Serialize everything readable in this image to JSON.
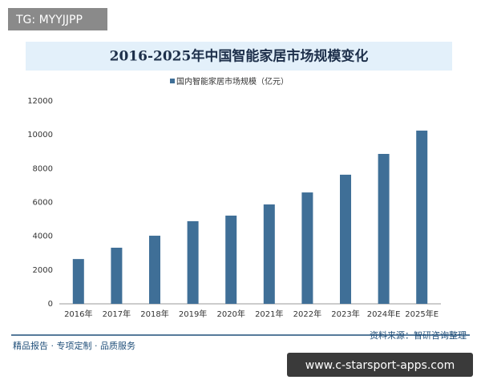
{
  "tag": "TG: MYYJJPP",
  "chart_data": {
    "type": "bar",
    "title": "2016-2025年中国智能家居市场规模变化",
    "series": [
      {
        "name": "国内智能家居市场规模（亿元）",
        "color": "#3f6f97",
        "values": [
          2650,
          3320,
          4030,
          4890,
          5220,
          5880,
          6590,
          7640,
          8870,
          10250
        ]
      }
    ],
    "categories": [
      "2016年",
      "2017年",
      "2018年",
      "2019年",
      "2020年",
      "2021年",
      "2022年",
      "2023年",
      "2024年E",
      "2025年E"
    ],
    "ylim": [
      0,
      12000
    ],
    "yticks": [
      0,
      2000,
      4000,
      6000,
      8000,
      10000,
      12000
    ],
    "grid": false
  },
  "footer": {
    "slogan": "精品报告 · 专项定制 · 品质服务",
    "source": "资料来源：智研咨询整理"
  },
  "url": "www.c-starsport-apps.com"
}
